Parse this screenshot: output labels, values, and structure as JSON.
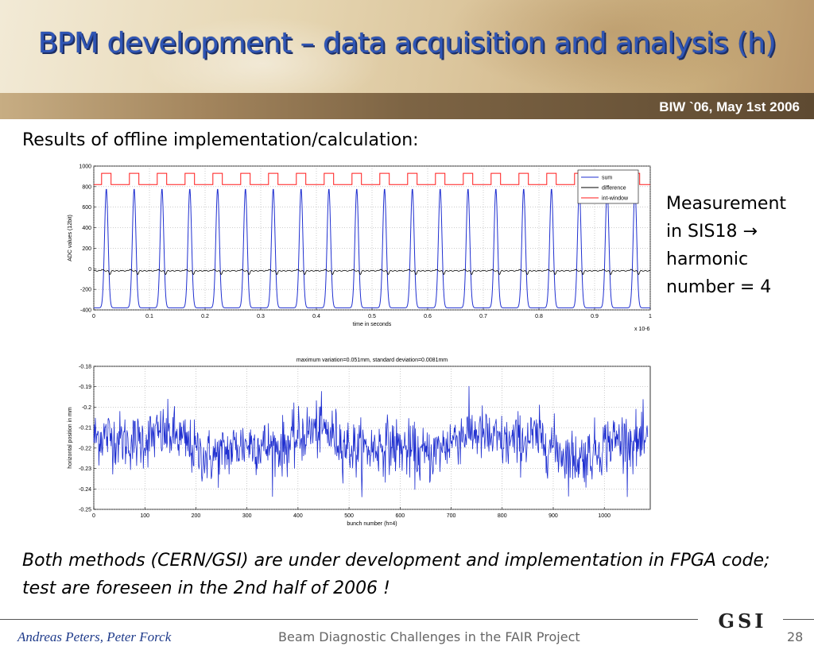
{
  "slide": {
    "title": "BPM development – data acquisition and analysis (h)",
    "date": "BIW `06, May 1st 2006",
    "results_label": "Results of offline implementation/calculation:",
    "note_lines": [
      "Measurement",
      "in SIS18 →",
      "harmonic",
      "number = 4"
    ],
    "bottom_text": "Both methods (CERN/GSI) are under development and implementation in FPGA code; test are foreseen in the 2nd half of 2006 !",
    "footer": {
      "authors": "Andreas Peters, Peter Forck",
      "project": "Beam Diagnostic Challenges in the FAIR Project",
      "page": "28",
      "logo": "GSI"
    }
  },
  "chart_data": [
    {
      "type": "line",
      "title": "",
      "xlabel": "time in seconds",
      "ylabel": "ADC values (12bit)",
      "x_multiplier": "x 10-6",
      "xlim": [
        0,
        1
      ],
      "ylim": [
        -400,
        1000
      ],
      "xticks": [
        "0",
        "0.1",
        "0.2",
        "0.3",
        "0.4",
        "0.5",
        "0.6",
        "0.7",
        "0.8",
        "0.9",
        "1"
      ],
      "yticks": [
        "-400",
        "-200",
        "0",
        "200",
        "400",
        "600",
        "800",
        "1000"
      ],
      "grid": true,
      "legend_position": "top-right",
      "pulse_count": 20,
      "series": [
        {
          "name": "sum",
          "color": "#1f2fd0",
          "baseline": -380,
          "peak": 780
        },
        {
          "name": "difference",
          "color": "#000000",
          "baseline": -20,
          "min": -60,
          "max": 0
        },
        {
          "name": "int-window",
          "color": "#ff1a1a",
          "low": 820,
          "high": 930
        }
      ]
    },
    {
      "type": "line",
      "title": "maximum variation=0.051mm, standard deviation=0.0081mm",
      "xlabel": "bunch number (h=4)",
      "ylabel": "horizontal position in mm",
      "xlim": [
        0,
        1090
      ],
      "ylim": [
        -0.25,
        -0.18
      ],
      "xticks": [
        "0",
        "100",
        "200",
        "300",
        "400",
        "500",
        "600",
        "700",
        "800",
        "900",
        "1000"
      ],
      "yticks": [
        "-0.25",
        "-0.24",
        "-0.23",
        "-0.22",
        "-0.21",
        "-0.2",
        "-0.19",
        "-0.18"
      ],
      "grid": true,
      "series": [
        {
          "name": "",
          "color": "#1f2fd0",
          "mean": -0.218,
          "std": 0.0081,
          "max_variation": 0.051
        }
      ]
    }
  ]
}
